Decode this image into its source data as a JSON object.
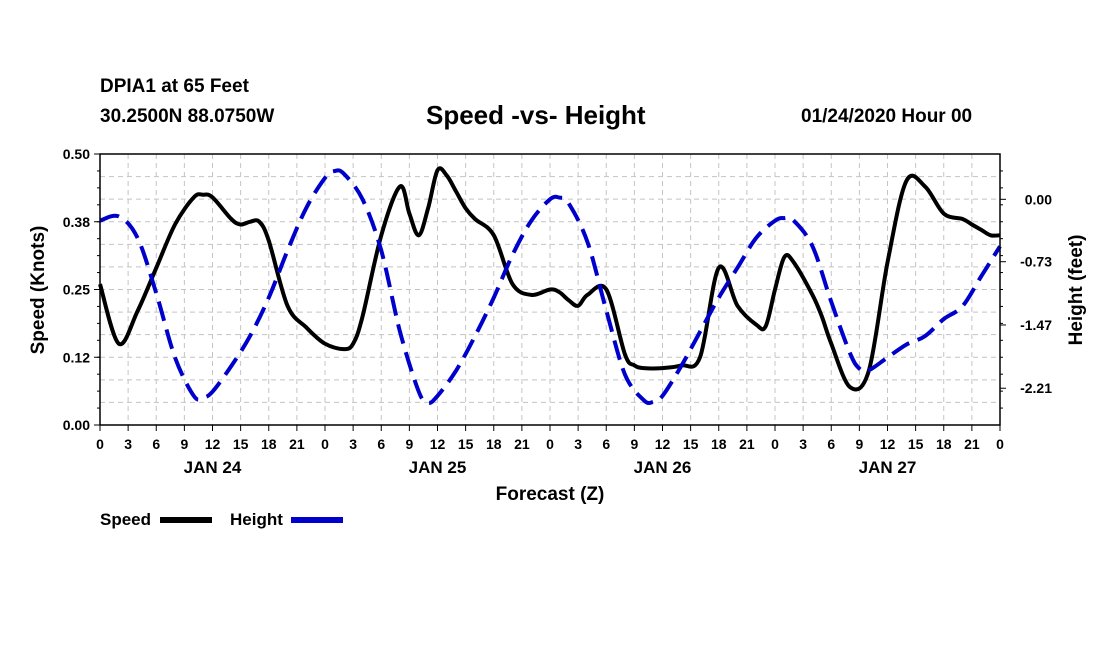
{
  "header": {
    "station": "DPIA1 at 65 Feet",
    "coords": "30.2500N 88.0750W",
    "title": "Speed -vs- Height",
    "forecast_time": "01/24/2020 Hour 00"
  },
  "chart_data": {
    "type": "line",
    "title": "Speed -vs- Height",
    "xlabel": "Forecast (Z)",
    "ylabel_left": "Speed (Knots)",
    "ylabel_right": "Height (feet)",
    "x_hours_range": [
      0,
      96
    ],
    "x_tick_labels": [
      "0",
      "3",
      "6",
      "9",
      "12",
      "15",
      "18",
      "21",
      "0",
      "3",
      "6",
      "9",
      "12",
      "15",
      "18",
      "21",
      "0",
      "3",
      "6",
      "9",
      "12",
      "15",
      "18",
      "21",
      "0",
      "3",
      "6",
      "9",
      "12",
      "15",
      "18",
      "21",
      "0"
    ],
    "day_labels": [
      "JAN 24",
      "JAN 25",
      "JAN 26",
      "JAN 27"
    ],
    "y_left_range": [
      0.0,
      0.5
    ],
    "y_left_ticks": [
      "0.00",
      "0.12",
      "0.25",
      "0.38",
      "0.50"
    ],
    "y_right_range": [
      -2.64,
      0.53
    ],
    "y_right_ticks": [
      "0.00",
      "-0.73",
      "-1.47",
      "-2.21"
    ],
    "grid": true,
    "legend": [
      "Speed",
      "Height"
    ],
    "series": [
      {
        "name": "Speed",
        "axis": "left",
        "color": "#000000",
        "style": "solid",
        "x": [
          0,
          2,
          4,
          6,
          8,
          10,
          11,
          12,
          14,
          15,
          16,
          17,
          18,
          20,
          22,
          24,
          26,
          27,
          28,
          30,
          32,
          33,
          34,
          35,
          36,
          37,
          38,
          39,
          40,
          42,
          44,
          46,
          48,
          49,
          50,
          51,
          52,
          54,
          56,
          57,
          58,
          60,
          62,
          64,
          66,
          68,
          70,
          71,
          72,
          73,
          74,
          76,
          77,
          78,
          80,
          82,
          84,
          86,
          88,
          90,
          92,
          93,
          94,
          95,
          96
        ],
        "values": [
          0.26,
          0.15,
          0.21,
          0.29,
          0.37,
          0.42,
          0.425,
          0.42,
          0.38,
          0.37,
          0.375,
          0.375,
          0.34,
          0.22,
          0.18,
          0.15,
          0.14,
          0.15,
          0.2,
          0.35,
          0.44,
          0.39,
          0.35,
          0.4,
          0.47,
          0.46,
          0.43,
          0.4,
          0.38,
          0.35,
          0.26,
          0.24,
          0.25,
          0.245,
          0.23,
          0.22,
          0.24,
          0.25,
          0.13,
          0.11,
          0.105,
          0.105,
          0.11,
          0.125,
          0.29,
          0.22,
          0.185,
          0.182,
          0.25,
          0.31,
          0.3,
          0.24,
          0.2,
          0.15,
          0.07,
          0.1,
          0.3,
          0.45,
          0.44,
          0.39,
          0.38,
          0.37,
          0.36,
          0.35,
          0.35
        ]
      },
      {
        "name": "Height",
        "axis": "right",
        "color": "#0000cc",
        "style": "dashed",
        "x": [
          0,
          2,
          4,
          6,
          8,
          10,
          11,
          12,
          14,
          16,
          18,
          20,
          22,
          24,
          25,
          26,
          28,
          30,
          32,
          34,
          35,
          36,
          38,
          40,
          42,
          44,
          46,
          48,
          49,
          50,
          52,
          54,
          56,
          58,
          59,
          60,
          62,
          64,
          66,
          68,
          70,
          72,
          73,
          74,
          76,
          78,
          80,
          81,
          82,
          84,
          86,
          88,
          90,
          92,
          94,
          96
        ],
        "values": [
          -0.25,
          -0.2,
          -0.45,
          -1.1,
          -1.85,
          -2.3,
          -2.32,
          -2.25,
          -1.95,
          -1.6,
          -1.15,
          -0.6,
          -0.1,
          0.25,
          0.33,
          0.3,
          0.0,
          -0.6,
          -1.55,
          -2.25,
          -2.38,
          -2.3,
          -2.0,
          -1.6,
          -1.15,
          -0.65,
          -0.25,
          0.0,
          0.02,
          -0.05,
          -0.5,
          -1.3,
          -2.05,
          -2.35,
          -2.37,
          -2.3,
          -1.95,
          -1.55,
          -1.15,
          -0.8,
          -0.45,
          -0.25,
          -0.22,
          -0.25,
          -0.55,
          -1.2,
          -1.8,
          -1.98,
          -2.0,
          -1.85,
          -1.7,
          -1.6,
          -1.4,
          -1.25,
          -0.9,
          -0.55
        ]
      }
    ]
  }
}
